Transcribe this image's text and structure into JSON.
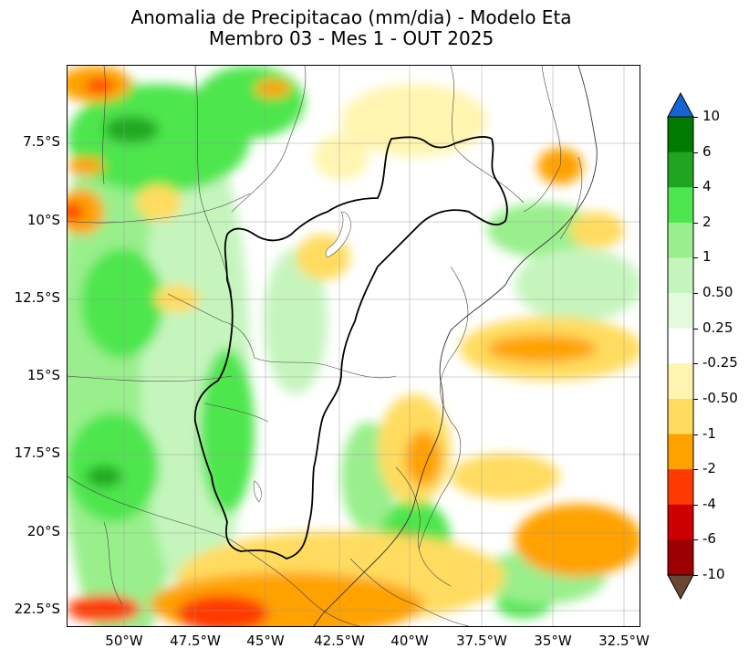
{
  "title": {
    "line1": "Anomalia de Precipitacao (mm/dia) - Modelo Eta",
    "line2": "Membro 03 - Mes 1 - OUT 2025"
  },
  "axes": {
    "y_labels": [
      "7.5°S",
      "10°S",
      "12.5°S",
      "15°S",
      "17.5°S",
      "20°S",
      "22.5°S"
    ],
    "x_labels": [
      "50°W",
      "47.5°W",
      "45°W",
      "42.5°W",
      "40°W",
      "37.5°W",
      "35°W",
      "32.5°W"
    ]
  },
  "colorbar": {
    "labels": [
      "10",
      "6",
      "4",
      "2",
      "1",
      "0.50",
      "0.25",
      "-0.25",
      "-0.50",
      "-1",
      "-2",
      "-4",
      "-6",
      "-10"
    ],
    "colors": [
      "#007a00",
      "#1fa51f",
      "#4ee64e",
      "#99ef8c",
      "#c5f5bd",
      "#e3fadd",
      "#ffffff",
      "#fff5b0",
      "#ffdc5e",
      "#ffa200",
      "#ff3a00",
      "#cc0000",
      "#9c0000"
    ],
    "over_color": "#1464d2",
    "under_color": "#6b4632"
  },
  "map": {
    "colors": {
      "green_dark": "#22a822",
      "green": "#4ee64e",
      "green_light": "#99ef8c",
      "green_pale": "#c5f5bd",
      "yellow_pale": "#fff5b0",
      "yellow": "#ffdc5e",
      "orange": "#ffa200",
      "red": "#ff3a00",
      "dark_red": "#cc0000"
    }
  }
}
